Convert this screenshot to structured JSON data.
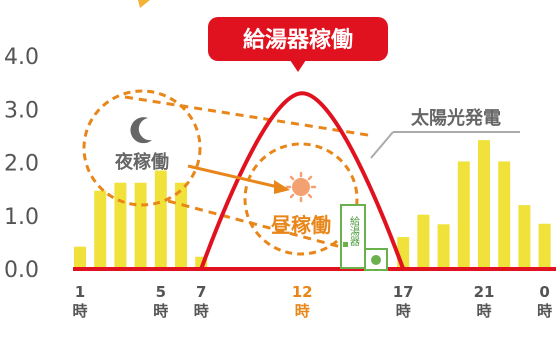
{
  "chart_data": {
    "type": "bar",
    "ylim": [
      0,
      4.0
    ],
    "yticks": [
      "0.0",
      "1.0",
      "2.0",
      "3.0",
      "4.0"
    ],
    "hours": [
      1,
      2,
      3,
      4,
      5,
      6,
      7,
      8,
      9,
      10,
      11,
      12,
      13,
      14,
      15,
      16,
      17,
      18,
      19,
      20,
      21,
      22,
      23,
      24
    ],
    "values": [
      0.42,
      1.47,
      1.62,
      1.62,
      1.85,
      1.62,
      0.23,
      0,
      0,
      0,
      0,
      0,
      0,
      0,
      0,
      0,
      0.6,
      1.02,
      0.84,
      2.02,
      2.42,
      2.02,
      1.2,
      0.85
    ],
    "solar_curve": {
      "name": "太陽光発電",
      "start_hour": 7,
      "peak_hour": 12,
      "end_hour": 17,
      "peak": 3.3
    },
    "xticks": [
      {
        "hour": 1,
        "number": "1",
        "unit": "時",
        "highlight": false
      },
      {
        "hour": 5,
        "number": "5",
        "unit": "時",
        "highlight": false
      },
      {
        "hour": 7,
        "number": "7",
        "unit": "時",
        "highlight": false
      },
      {
        "hour": 12,
        "number": "12",
        "unit": "時",
        "highlight": true
      },
      {
        "hour": 17,
        "number": "17",
        "unit": "時",
        "highlight": false
      },
      {
        "hour": 21,
        "number": "21",
        "unit": "時",
        "highlight": false
      },
      {
        "hour": 24,
        "number": "0",
        "unit": "時",
        "highlight": false
      }
    ],
    "annotations": {
      "callout": "給湯器稼働",
      "night": "夜稼働",
      "day": "昼稼働",
      "solar": "太陽光発電",
      "heater": "給湯器"
    }
  },
  "colors": {
    "bar": "#f1e23b",
    "curve": "#e1121f",
    "callout": "#e1121f",
    "dashed": "#e8861a",
    "sun": "#f4a171",
    "heater": "#6ab04c"
  }
}
